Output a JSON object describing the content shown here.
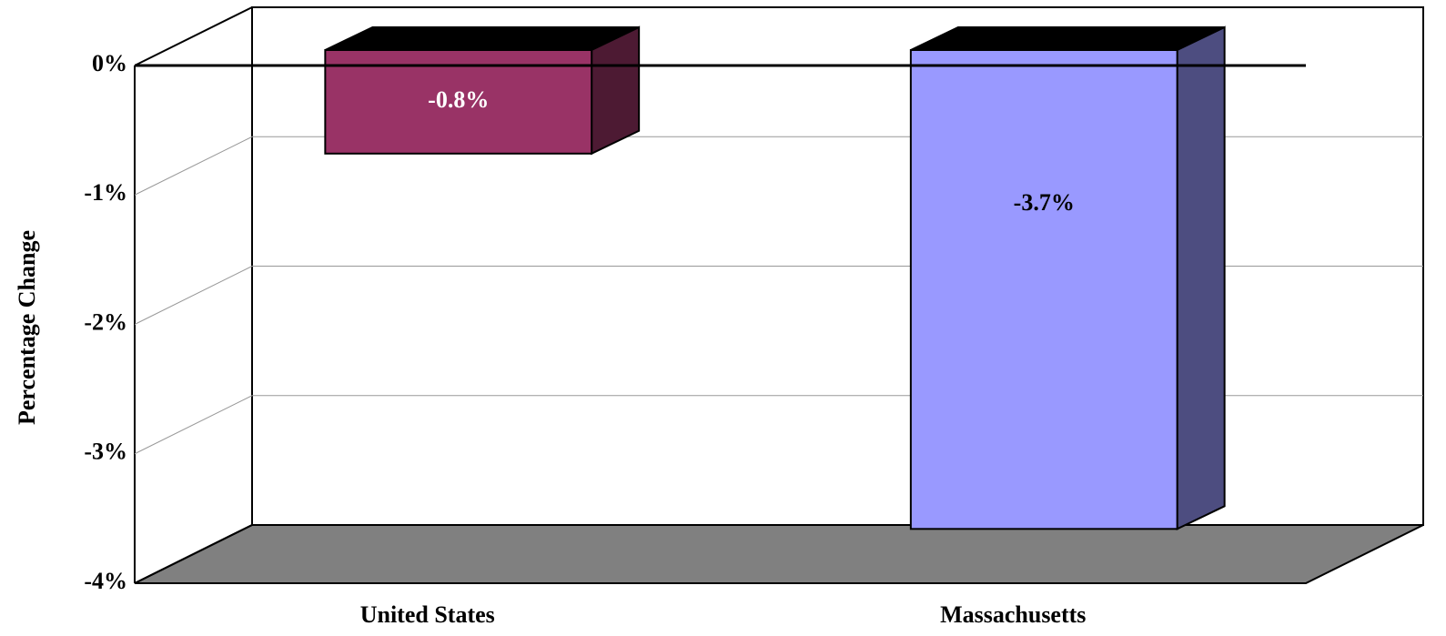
{
  "chart_data": {
    "type": "bar3d",
    "ylabel": "Percentage Change",
    "categories": [
      "United States",
      "Massachusetts"
    ],
    "values": [
      -0.8,
      -3.7
    ],
    "value_labels": [
      "-0.8%",
      "-3.7%"
    ],
    "colors": [
      "#993366",
      "#9999ff"
    ],
    "value_label_colors": [
      "#ffffff",
      "#000000"
    ],
    "ylim": [
      -4,
      0
    ],
    "yticks": [
      {
        "value": 0,
        "label": "0%"
      },
      {
        "value": -1,
        "label": "-1%"
      },
      {
        "value": -2,
        "label": "-2%"
      },
      {
        "value": -3,
        "label": "-3%"
      },
      {
        "value": -4,
        "label": "-4%"
      }
    ],
    "grid": true
  }
}
